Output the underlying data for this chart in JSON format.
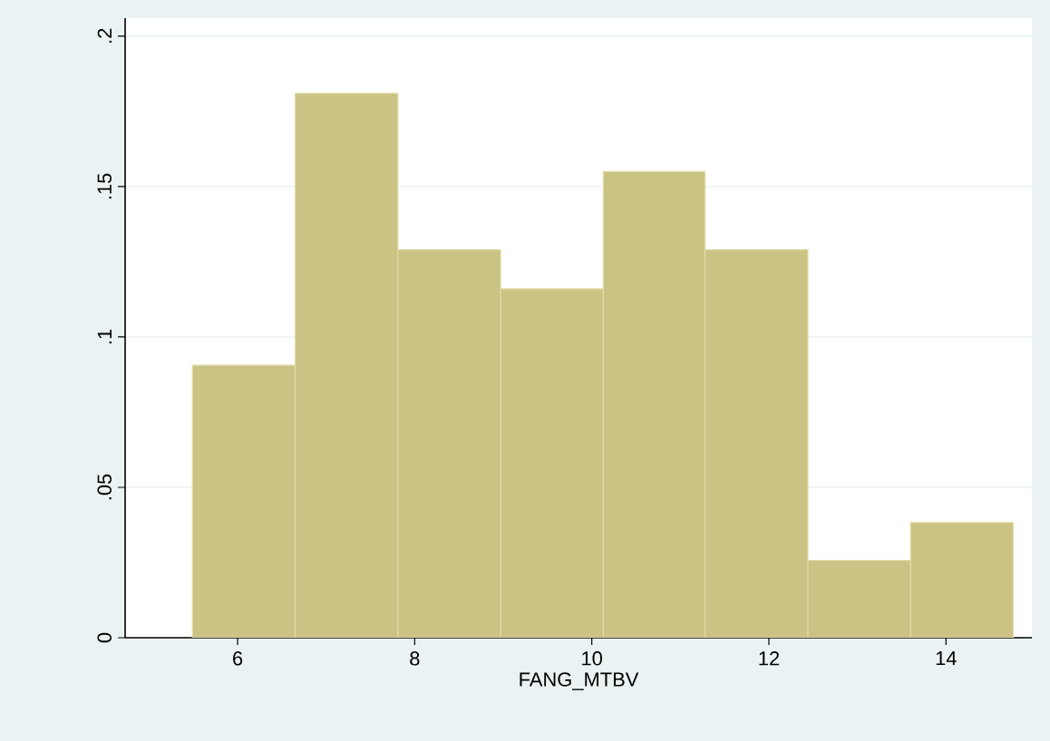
{
  "chart_data": {
    "type": "histogram",
    "xlabel": "FANG_MTBV",
    "bins": [
      5.49,
      6.65,
      7.81,
      8.97,
      10.13,
      11.28,
      12.44,
      13.6,
      14.76
    ],
    "values": [
      0.0906,
      0.181,
      0.129,
      0.116,
      0.155,
      0.129,
      0.0257,
      0.0383
    ],
    "color": "#cbc383",
    "xlim": [
      4.73,
      14.97
    ],
    "xticks": [
      6,
      8,
      10,
      12,
      14
    ],
    "ylim": [
      0,
      0.206
    ],
    "yticks": [
      {
        "value": 0,
        "label": "0"
      },
      {
        "value": 0.05,
        "label": ".05"
      },
      {
        "value": 0.1,
        "label": ".1"
      },
      {
        "value": 0.15,
        "label": ".15"
      },
      {
        "value": 0.2,
        "label": ".2"
      }
    ],
    "grid": "y"
  }
}
